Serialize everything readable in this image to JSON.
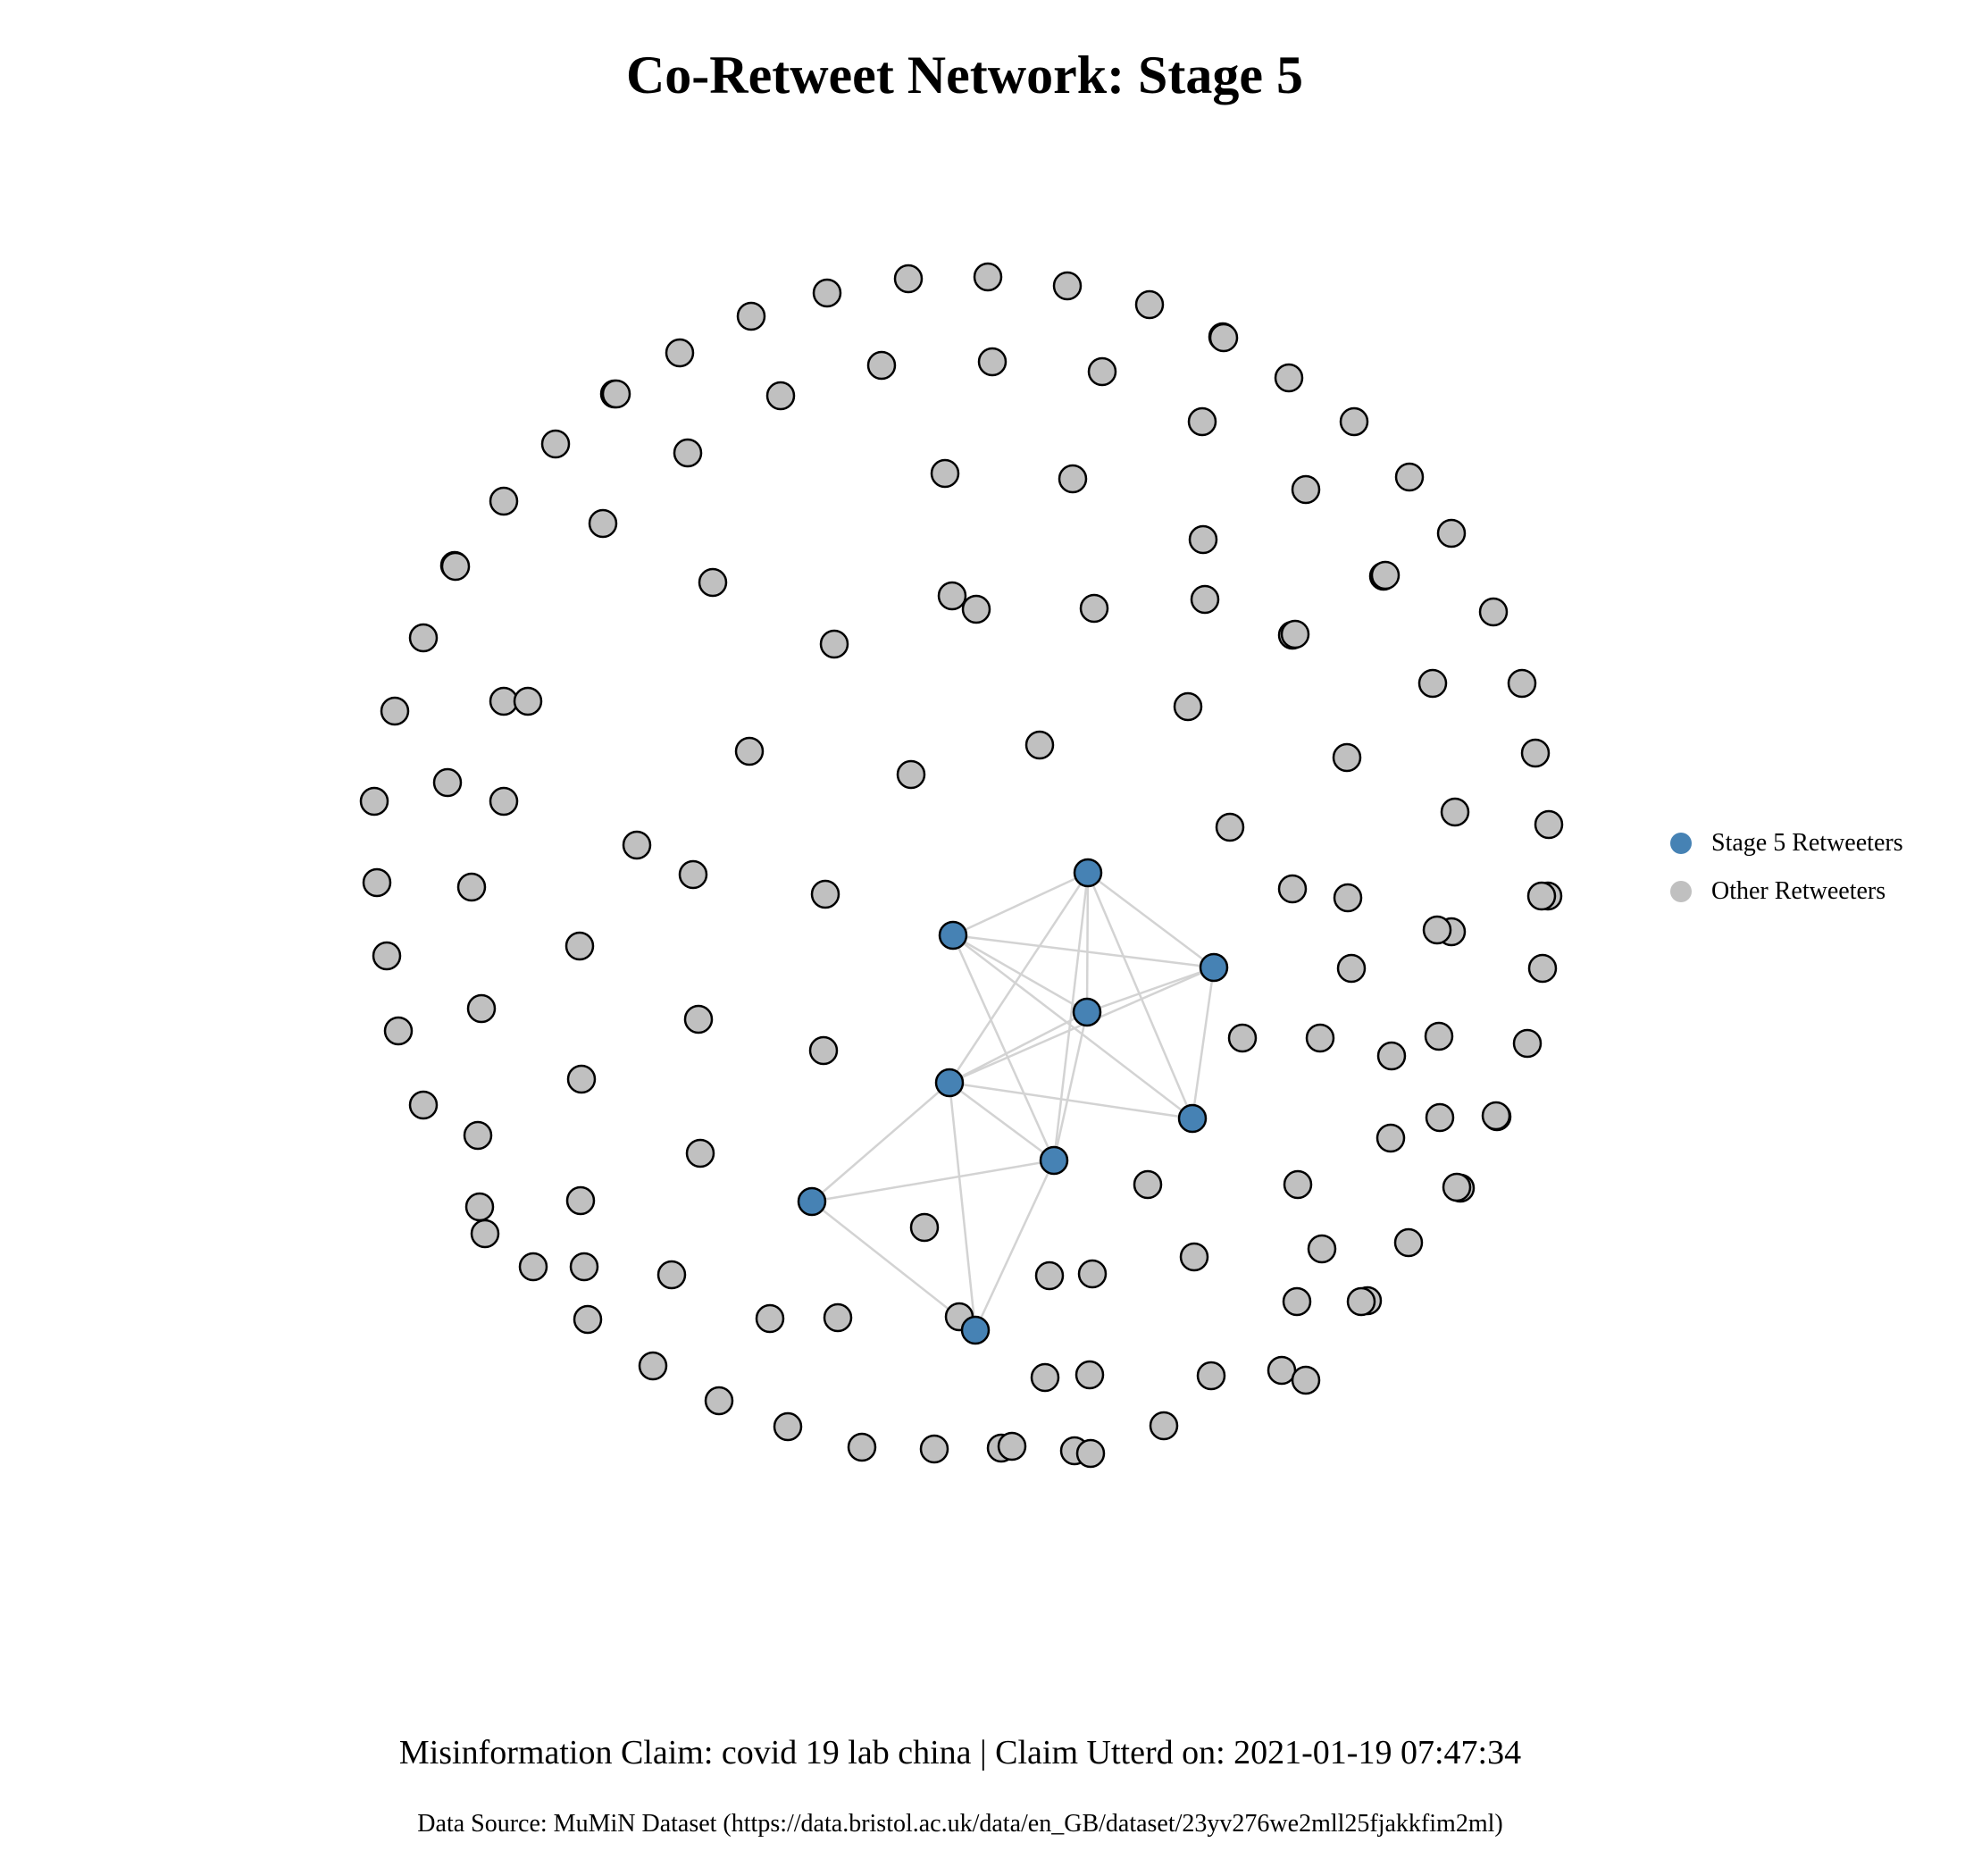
{
  "title": "Co-Retweet Network: Stage 5",
  "caption": "Misinformation Claim: covid 19 lab china | Claim Utterd on: 2021-01-19 07:47:34",
  "source": "Data Source: MuMiN Dataset (https://data.bristol.ac.uk/data/en_GB/dataset/23yv276we2mll25fjakkfim2ml)",
  "legend": {
    "stage_label": "Stage 5 Retweeters",
    "other_label": "Other Retweeters"
  },
  "colors": {
    "stage": "#4682b4",
    "other": "#c0c0c0",
    "edge": "#d3d3d3",
    "stroke": "#000000"
  },
  "network": {
    "stage_nodes": 9,
    "other_nodes": 153,
    "edges": [
      [
        0,
        1
      ],
      [
        0,
        2
      ],
      [
        0,
        3
      ],
      [
        0,
        4
      ],
      [
        0,
        5
      ],
      [
        0,
        6
      ],
      [
        1,
        2
      ],
      [
        1,
        3
      ],
      [
        1,
        5
      ],
      [
        1,
        6
      ],
      [
        2,
        3
      ],
      [
        2,
        4
      ],
      [
        2,
        5
      ],
      [
        3,
        4
      ],
      [
        3,
        6
      ],
      [
        4,
        5
      ],
      [
        4,
        6
      ],
      [
        4,
        7
      ],
      [
        4,
        8
      ],
      [
        6,
        7
      ],
      [
        6,
        8
      ],
      [
        7,
        8
      ]
    ]
  }
}
